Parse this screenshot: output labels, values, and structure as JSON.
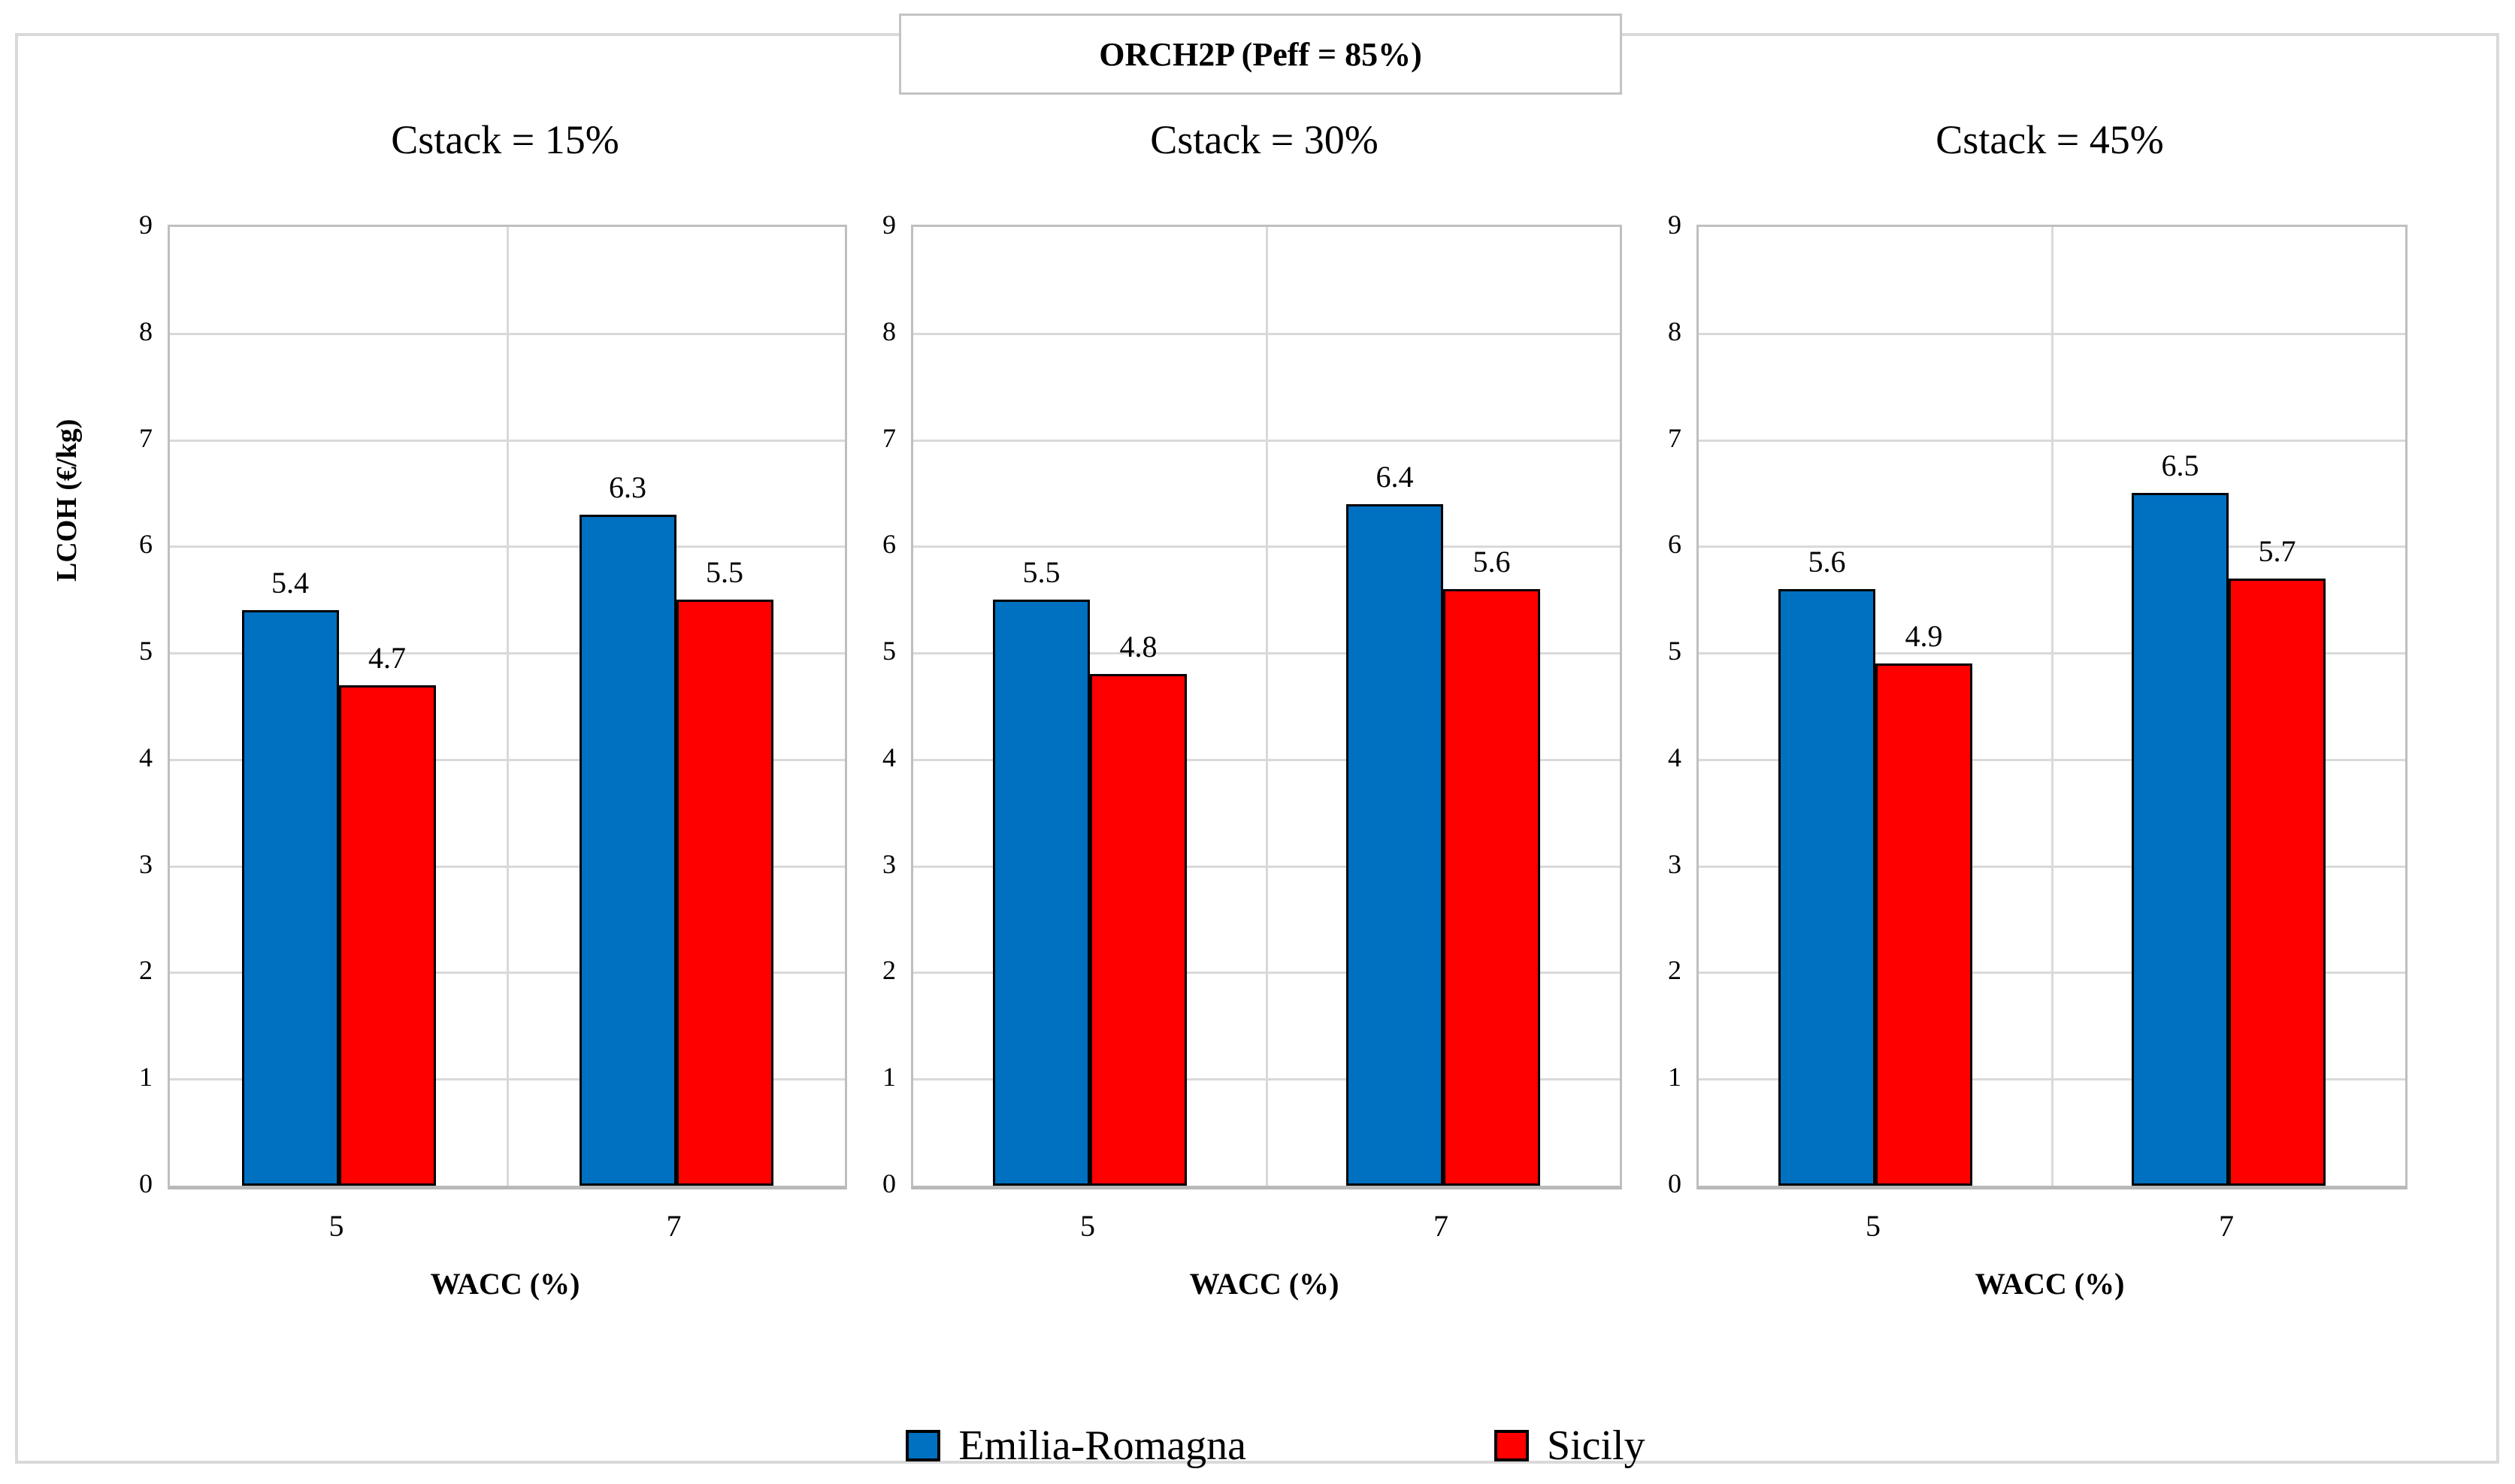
{
  "figure_title": "ORCH2P (Peff = 85%)",
  "legend": {
    "items": [
      {
        "label": "Emilia-Romagna",
        "color": "#0070C0"
      },
      {
        "label": "Sicily",
        "color": "#FF0000"
      }
    ]
  },
  "colors": {
    "emilia_romagna": "#0070C0",
    "sicily": "#FF0000",
    "bar_border": "#000000",
    "gridline": "#D9D9D9",
    "plot_border": "#BFBFBF",
    "outer_border": "#D9D9D9"
  },
  "chart_data": [
    {
      "type": "bar",
      "title": "Cstack = 15%",
      "categories": [
        "5",
        "7"
      ],
      "series": [
        {
          "name": "Emilia-Romagna",
          "color": "#0070C0",
          "values": [
            5.4,
            6.3
          ]
        },
        {
          "name": "Sicily",
          "color": "#FF0000",
          "values": [
            4.7,
            5.5
          ]
        }
      ],
      "xlabel": "WACC (%)",
      "ylabel": "LCOH (€/kg)",
      "ylim": [
        0,
        9
      ],
      "yticks": [
        0,
        1,
        2,
        3,
        4,
        5,
        6,
        7,
        8,
        9
      ],
      "grid": true,
      "data_labels": true,
      "legend_position": "bottom"
    },
    {
      "type": "bar",
      "title": "Cstack = 30%",
      "categories": [
        "5",
        "7"
      ],
      "series": [
        {
          "name": "Emilia-Romagna",
          "color": "#0070C0",
          "values": [
            5.5,
            6.4
          ]
        },
        {
          "name": "Sicily",
          "color": "#FF0000",
          "values": [
            4.8,
            5.6
          ]
        }
      ],
      "xlabel": "WACC (%)",
      "ylabel": "",
      "ylim": [
        0,
        9
      ],
      "yticks": [
        0,
        1,
        2,
        3,
        4,
        5,
        6,
        7,
        8,
        9
      ],
      "grid": true,
      "data_labels": true,
      "legend_position": "bottom"
    },
    {
      "type": "bar",
      "title": "Cstack = 45%",
      "categories": [
        "5",
        "7"
      ],
      "series": [
        {
          "name": "Emilia-Romagna",
          "color": "#0070C0",
          "values": [
            5.6,
            6.5
          ]
        },
        {
          "name": "Sicily",
          "color": "#FF0000",
          "values": [
            4.9,
            5.7
          ]
        }
      ],
      "xlabel": "WACC (%)",
      "ylabel": "",
      "ylim": [
        0,
        9
      ],
      "yticks": [
        0,
        1,
        2,
        3,
        4,
        5,
        6,
        7,
        8,
        9
      ],
      "grid": true,
      "data_labels": true,
      "legend_position": "bottom"
    }
  ]
}
